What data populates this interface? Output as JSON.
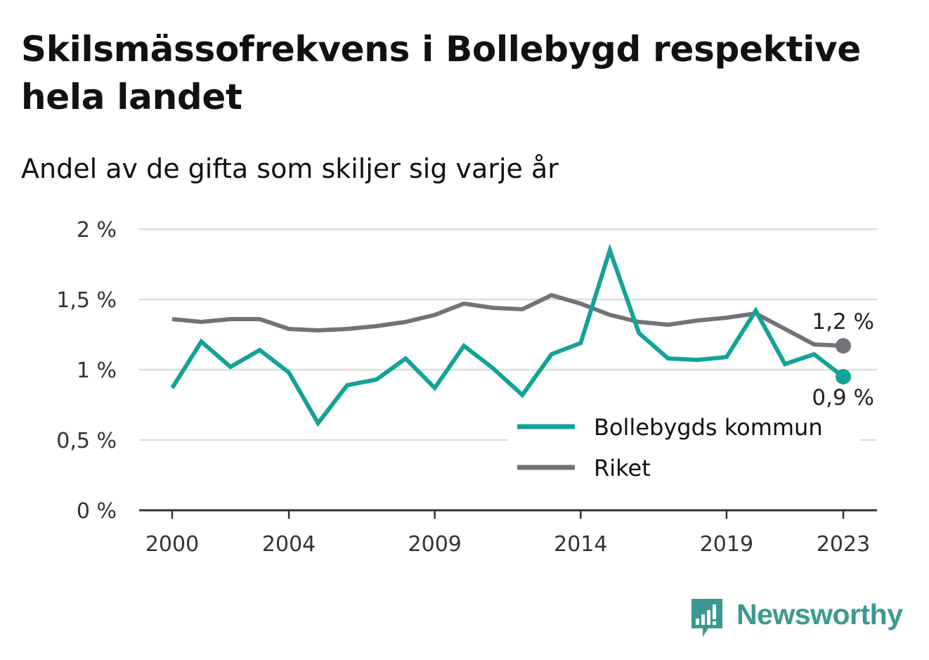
{
  "title": "Skilsmässofrekvens i Bollebygd respektive hela landet",
  "subtitle": "Andel av de gifta som skiljer sig varje år",
  "brand": {
    "name": "Newsworthy",
    "icon": "bar-chart-logo-icon",
    "color": "#3a9a92"
  },
  "chart_data": {
    "type": "line",
    "x": [
      2000,
      2001,
      2002,
      2003,
      2004,
      2005,
      2006,
      2007,
      2008,
      2009,
      2010,
      2011,
      2012,
      2013,
      2014,
      2015,
      2016,
      2017,
      2018,
      2019,
      2020,
      2021,
      2022,
      2023
    ],
    "x_ticks": [
      2000,
      2004,
      2009,
      2014,
      2019,
      2023
    ],
    "x_tick_labels": [
      "2000",
      "2004",
      "2009",
      "2014",
      "2019",
      "2023"
    ],
    "ylim": [
      0,
      2
    ],
    "y_ticks": [
      0,
      0.5,
      1,
      1.5,
      2
    ],
    "y_tick_labels": [
      "0 %",
      "0,5 %",
      "1 %",
      "1,5 %",
      "2 %"
    ],
    "grid": true,
    "legend_position": "bottom-right",
    "series": [
      {
        "name": "Bollebygds kommun",
        "color": "#13a298",
        "values": [
          0.87,
          1.2,
          1.02,
          1.14,
          0.98,
          0.62,
          0.89,
          0.93,
          1.08,
          0.87,
          1.17,
          1.01,
          0.82,
          1.11,
          1.19,
          1.85,
          1.26,
          1.08,
          1.07,
          1.09,
          1.42,
          1.04,
          1.11,
          0.95
        ],
        "end_label": "0,9 %"
      },
      {
        "name": "Riket",
        "color": "#737278",
        "values": [
          1.36,
          1.34,
          1.36,
          1.36,
          1.29,
          1.28,
          1.29,
          1.31,
          1.34,
          1.39,
          1.47,
          1.44,
          1.43,
          1.53,
          1.47,
          1.39,
          1.34,
          1.32,
          1.35,
          1.37,
          1.4,
          1.29,
          1.18,
          1.17
        ],
        "end_label": "1,2 %"
      }
    ]
  }
}
